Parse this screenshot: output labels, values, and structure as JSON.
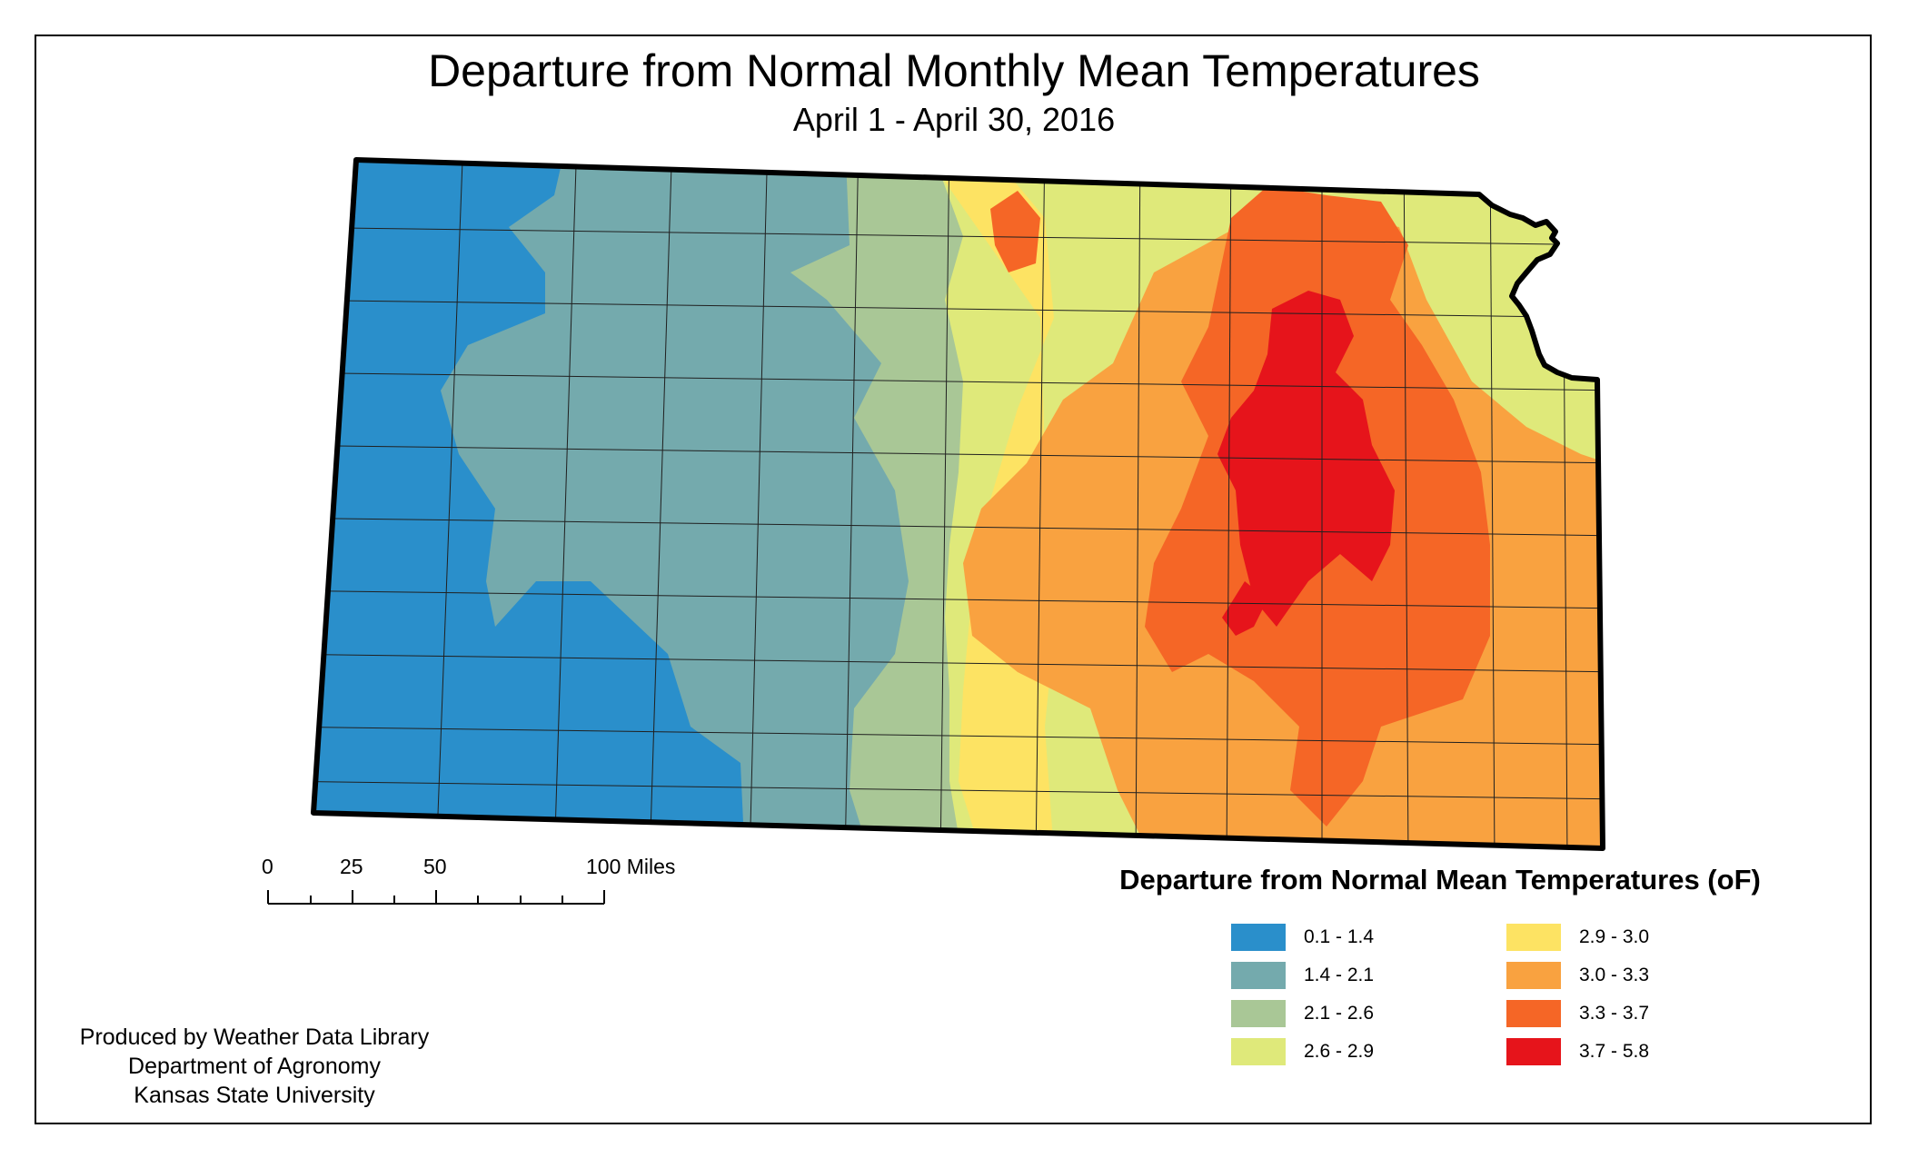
{
  "title": "Departure from Normal Monthly Mean Temperatures",
  "subtitle": "April 1 - April 30, 2016",
  "scale_bar": {
    "labels": [
      "0",
      "25",
      "50",
      "100 Miles"
    ]
  },
  "legend": {
    "title": "Departure from Normal Mean Temperatures (oF)",
    "items": [
      {
        "label": "0.1 - 1.4",
        "color": "#2a8fcb"
      },
      {
        "label": "1.4 - 2.1",
        "color": "#74aaad"
      },
      {
        "label": "2.1 - 2.6",
        "color": "#a9c796"
      },
      {
        "label": "2.6 - 2.9",
        "color": "#dfe97a"
      },
      {
        "label": "2.9 - 3.0",
        "color": "#fde363"
      },
      {
        "label": "3.0 - 3.3",
        "color": "#f9a240"
      },
      {
        "label": "3.3 - 3.7",
        "color": "#f56626"
      },
      {
        "label": "3.7 - 5.8",
        "color": "#e6141b"
      }
    ]
  },
  "credits": [
    "Produced by Weather Data Library",
    "Department of Agronomy",
    "Kansas State University"
  ]
}
